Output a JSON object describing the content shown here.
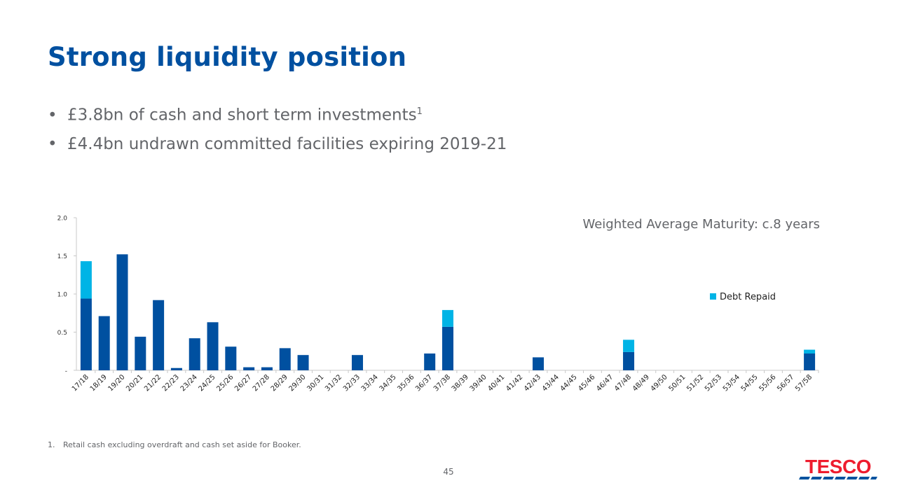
{
  "slide": {
    "title": "Strong liquidity position",
    "bullets": [
      {
        "text": "£3.8bn of cash and short term investments",
        "sup": "1"
      },
      {
        "text": "£4.4bn undrawn committed facilities expiring 2019-21",
        "sup": ""
      }
    ],
    "footnote": {
      "number": "1.",
      "text": "Retail cash excluding overdraft and cash set aside for Booker."
    },
    "page_number": "45",
    "logo_text": "TESCO",
    "bullet_glyph": "•"
  },
  "colors": {
    "title": "#0050a0",
    "body_text": "#636569",
    "series_dark": "#0050a0",
    "series_light": "#00b4e6",
    "logo_red": "#ee1c2e",
    "logo_blue": "#00539f"
  },
  "chart_data": {
    "type": "bar",
    "stacked": true,
    "annotation": "Weighted Average Maturity: c.8 years",
    "ylim": [
      0,
      2.0
    ],
    "yticks": [
      0,
      0.5,
      1.0,
      1.5,
      2.0
    ],
    "ytick_labels": [
      "-",
      "0.5",
      "1.0",
      "1.5",
      "2.0"
    ],
    "grid": false,
    "legend_position": "right",
    "categories": [
      "17/18",
      "18/19",
      "19/20",
      "20/21",
      "21/22",
      "22/23",
      "23/24",
      "24/25",
      "25/26",
      "26/27",
      "27/28",
      "28/29",
      "29/30",
      "30/31",
      "31/32",
      "32/33",
      "33/34",
      "34/35",
      "35/36",
      "36/37",
      "37/38",
      "38/39",
      "39/40",
      "40/41",
      "41/42",
      "42/43",
      "43/44",
      "44/45",
      "45/46",
      "46/47",
      "47/48",
      "48/49",
      "49/50",
      "50/51",
      "51/52",
      "52/53",
      "53/54",
      "54/55",
      "55/56",
      "56/57",
      "57/58"
    ],
    "series": [
      {
        "name": "",
        "color": "#0050a0",
        "values": [
          0.94,
          0.71,
          1.52,
          0.44,
          0.92,
          0.03,
          0.42,
          0.63,
          0.31,
          0.04,
          0.04,
          0.29,
          0.2,
          0,
          0,
          0.2,
          0,
          0,
          0,
          0.22,
          0.57,
          0,
          0,
          0,
          0,
          0.17,
          0,
          0,
          0,
          0,
          0.24,
          0,
          0,
          0,
          0,
          0,
          0,
          0,
          0,
          0,
          0.22
        ]
      },
      {
        "name": "Debt Repaid",
        "color": "#00b4e6",
        "values": [
          0.49,
          0,
          0,
          0,
          0,
          0,
          0,
          0,
          0,
          0,
          0,
          0,
          0,
          0,
          0,
          0,
          0,
          0,
          0,
          0,
          0.22,
          0,
          0,
          0,
          0,
          0,
          0,
          0,
          0,
          0,
          0.16,
          0,
          0,
          0,
          0,
          0,
          0,
          0,
          0,
          0,
          0.05
        ]
      }
    ]
  }
}
